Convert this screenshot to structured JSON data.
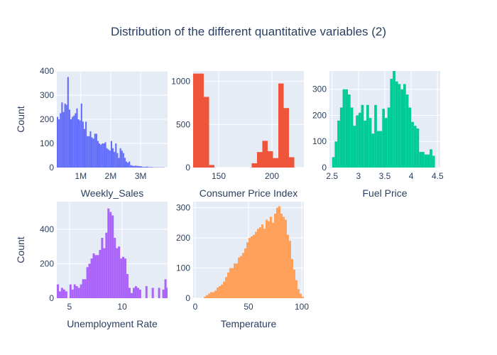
{
  "title": "Distribution of the different quantitative variables (2)",
  "colors": {
    "plot_bg": "#e5ecf6",
    "grid": "#ffffff",
    "text": "#2a3f5f"
  },
  "chart_data": [
    {
      "type": "bar",
      "id": "weekly-sales",
      "xlabel": "Weekly_Sales",
      "ylabel": "Count",
      "color": "#636efa",
      "xlim": [
        200000,
        3900000
      ],
      "ylim": [
        0,
        400
      ],
      "xticks": [
        {
          "v": 1000000,
          "label": "1M"
        },
        {
          "v": 2000000,
          "label": "2M"
        },
        {
          "v": 3000000,
          "label": "3M"
        }
      ],
      "yticks": [
        0,
        100,
        200,
        300,
        400
      ],
      "bin_start": 200000,
      "bin_width": 50000,
      "values": [
        210,
        200,
        225,
        270,
        230,
        265,
        260,
        375,
        240,
        200,
        210,
        215,
        225,
        245,
        200,
        195,
        265,
        190,
        160,
        190,
        130,
        130,
        150,
        125,
        120,
        140,
        140,
        110,
        100,
        95,
        100,
        100,
        105,
        80,
        75,
        70,
        110,
        80,
        65,
        100,
        60,
        40,
        80,
        70,
        60,
        40,
        25,
        20,
        25,
        10,
        8,
        6,
        8,
        7,
        6,
        6,
        5,
        3,
        3,
        3,
        4,
        2,
        2,
        2,
        1,
        1,
        1,
        1,
        1,
        1,
        1,
        1
      ]
    },
    {
      "type": "bar",
      "id": "cpi",
      "xlabel": "Consumer Price Index",
      "ylabel": "",
      "color": "#ef553b",
      "xlim": [
        126,
        230
      ],
      "ylim": [
        0,
        1120
      ],
      "xticks": [
        {
          "v": 150,
          "label": "150"
        },
        {
          "v": 200,
          "label": "200"
        }
      ],
      "yticks": [
        0,
        500,
        1000
      ],
      "bin_start": 126,
      "bin_width": 5,
      "values": [
        1090,
        1090,
        820,
        30,
        0,
        0,
        0,
        0,
        0,
        0,
        0,
        50,
        180,
        310,
        190,
        110,
        975,
        690,
        120
      ]
    },
    {
      "type": "bar",
      "id": "fuel-price",
      "xlabel": "Fuel Price",
      "ylabel": "",
      "color": "#00cc96",
      "xlim": [
        2.45,
        4.55
      ],
      "ylim": [
        0,
        370
      ],
      "xticks": [
        {
          "v": 2.5,
          "label": "2.5"
        },
        {
          "v": 3,
          "label": "3"
        },
        {
          "v": 3.5,
          "label": "3.5"
        },
        {
          "v": 4,
          "label": "4"
        },
        {
          "v": 4.5,
          "label": "4.5"
        }
      ],
      "yticks": [
        0,
        100,
        200,
        300
      ],
      "bin_start": 2.5,
      "bin_width": 0.05,
      "values": [
        40,
        100,
        180,
        230,
        300,
        300,
        280,
        230,
        160,
        200,
        210,
        240,
        180,
        240,
        190,
        130,
        240,
        140,
        140,
        225,
        190,
        230,
        340,
        380,
        330,
        320,
        300,
        320,
        280,
        230,
        175,
        160,
        150,
        60,
        60,
        50,
        50,
        70,
        45,
        0,
        0,
        0,
        0,
        5
      ]
    },
    {
      "type": "bar",
      "id": "unemployment",
      "xlabel": "Unemployment Rate",
      "ylabel": "Count",
      "color": "#ab63fa",
      "xlim": [
        3.8,
        14.3
      ],
      "ylim": [
        0,
        560
      ],
      "xticks": [
        {
          "v": 5,
          "label": "5"
        },
        {
          "v": 10,
          "label": "10"
        }
      ],
      "yticks": [
        0,
        200,
        400
      ],
      "bin_start": 3.8,
      "bin_width": 0.2,
      "values": [
        80,
        40,
        60,
        50,
        40,
        0,
        80,
        50,
        80,
        70,
        60,
        80,
        110,
        110,
        180,
        200,
        230,
        260,
        250,
        250,
        280,
        350,
        290,
        380,
        520,
        500,
        480,
        350,
        290,
        300,
        230,
        240,
        230,
        140,
        60,
        30,
        60,
        70,
        60,
        50,
        0,
        0,
        70,
        0,
        0,
        60,
        0,
        0,
        60,
        0,
        50,
        110,
        60
      ]
    },
    {
      "type": "bar",
      "id": "temperature",
      "xlabel": "Temperature",
      "ylabel": "",
      "color": "#ffa15a",
      "xlim": [
        -2,
        102
      ],
      "ylim": [
        0,
        320
      ],
      "xticks": [
        {
          "v": 0,
          "label": "0"
        },
        {
          "v": 50,
          "label": "50"
        },
        {
          "v": 100,
          "label": "100"
        }
      ],
      "yticks": [
        0,
        100,
        200,
        300
      ],
      "bin_start": -2,
      "bin_width": 2,
      "values": [
        0,
        0,
        0,
        0,
        0,
        5,
        10,
        15,
        20,
        20,
        25,
        35,
        40,
        45,
        55,
        70,
        85,
        100,
        100,
        115,
        115,
        135,
        140,
        150,
        165,
        185,
        200,
        205,
        210,
        220,
        230,
        235,
        245,
        230,
        260,
        255,
        270,
        250,
        280,
        300,
        305,
        280,
        270,
        260,
        210,
        190,
        130,
        95,
        60,
        30,
        15,
        5
      ]
    }
  ]
}
